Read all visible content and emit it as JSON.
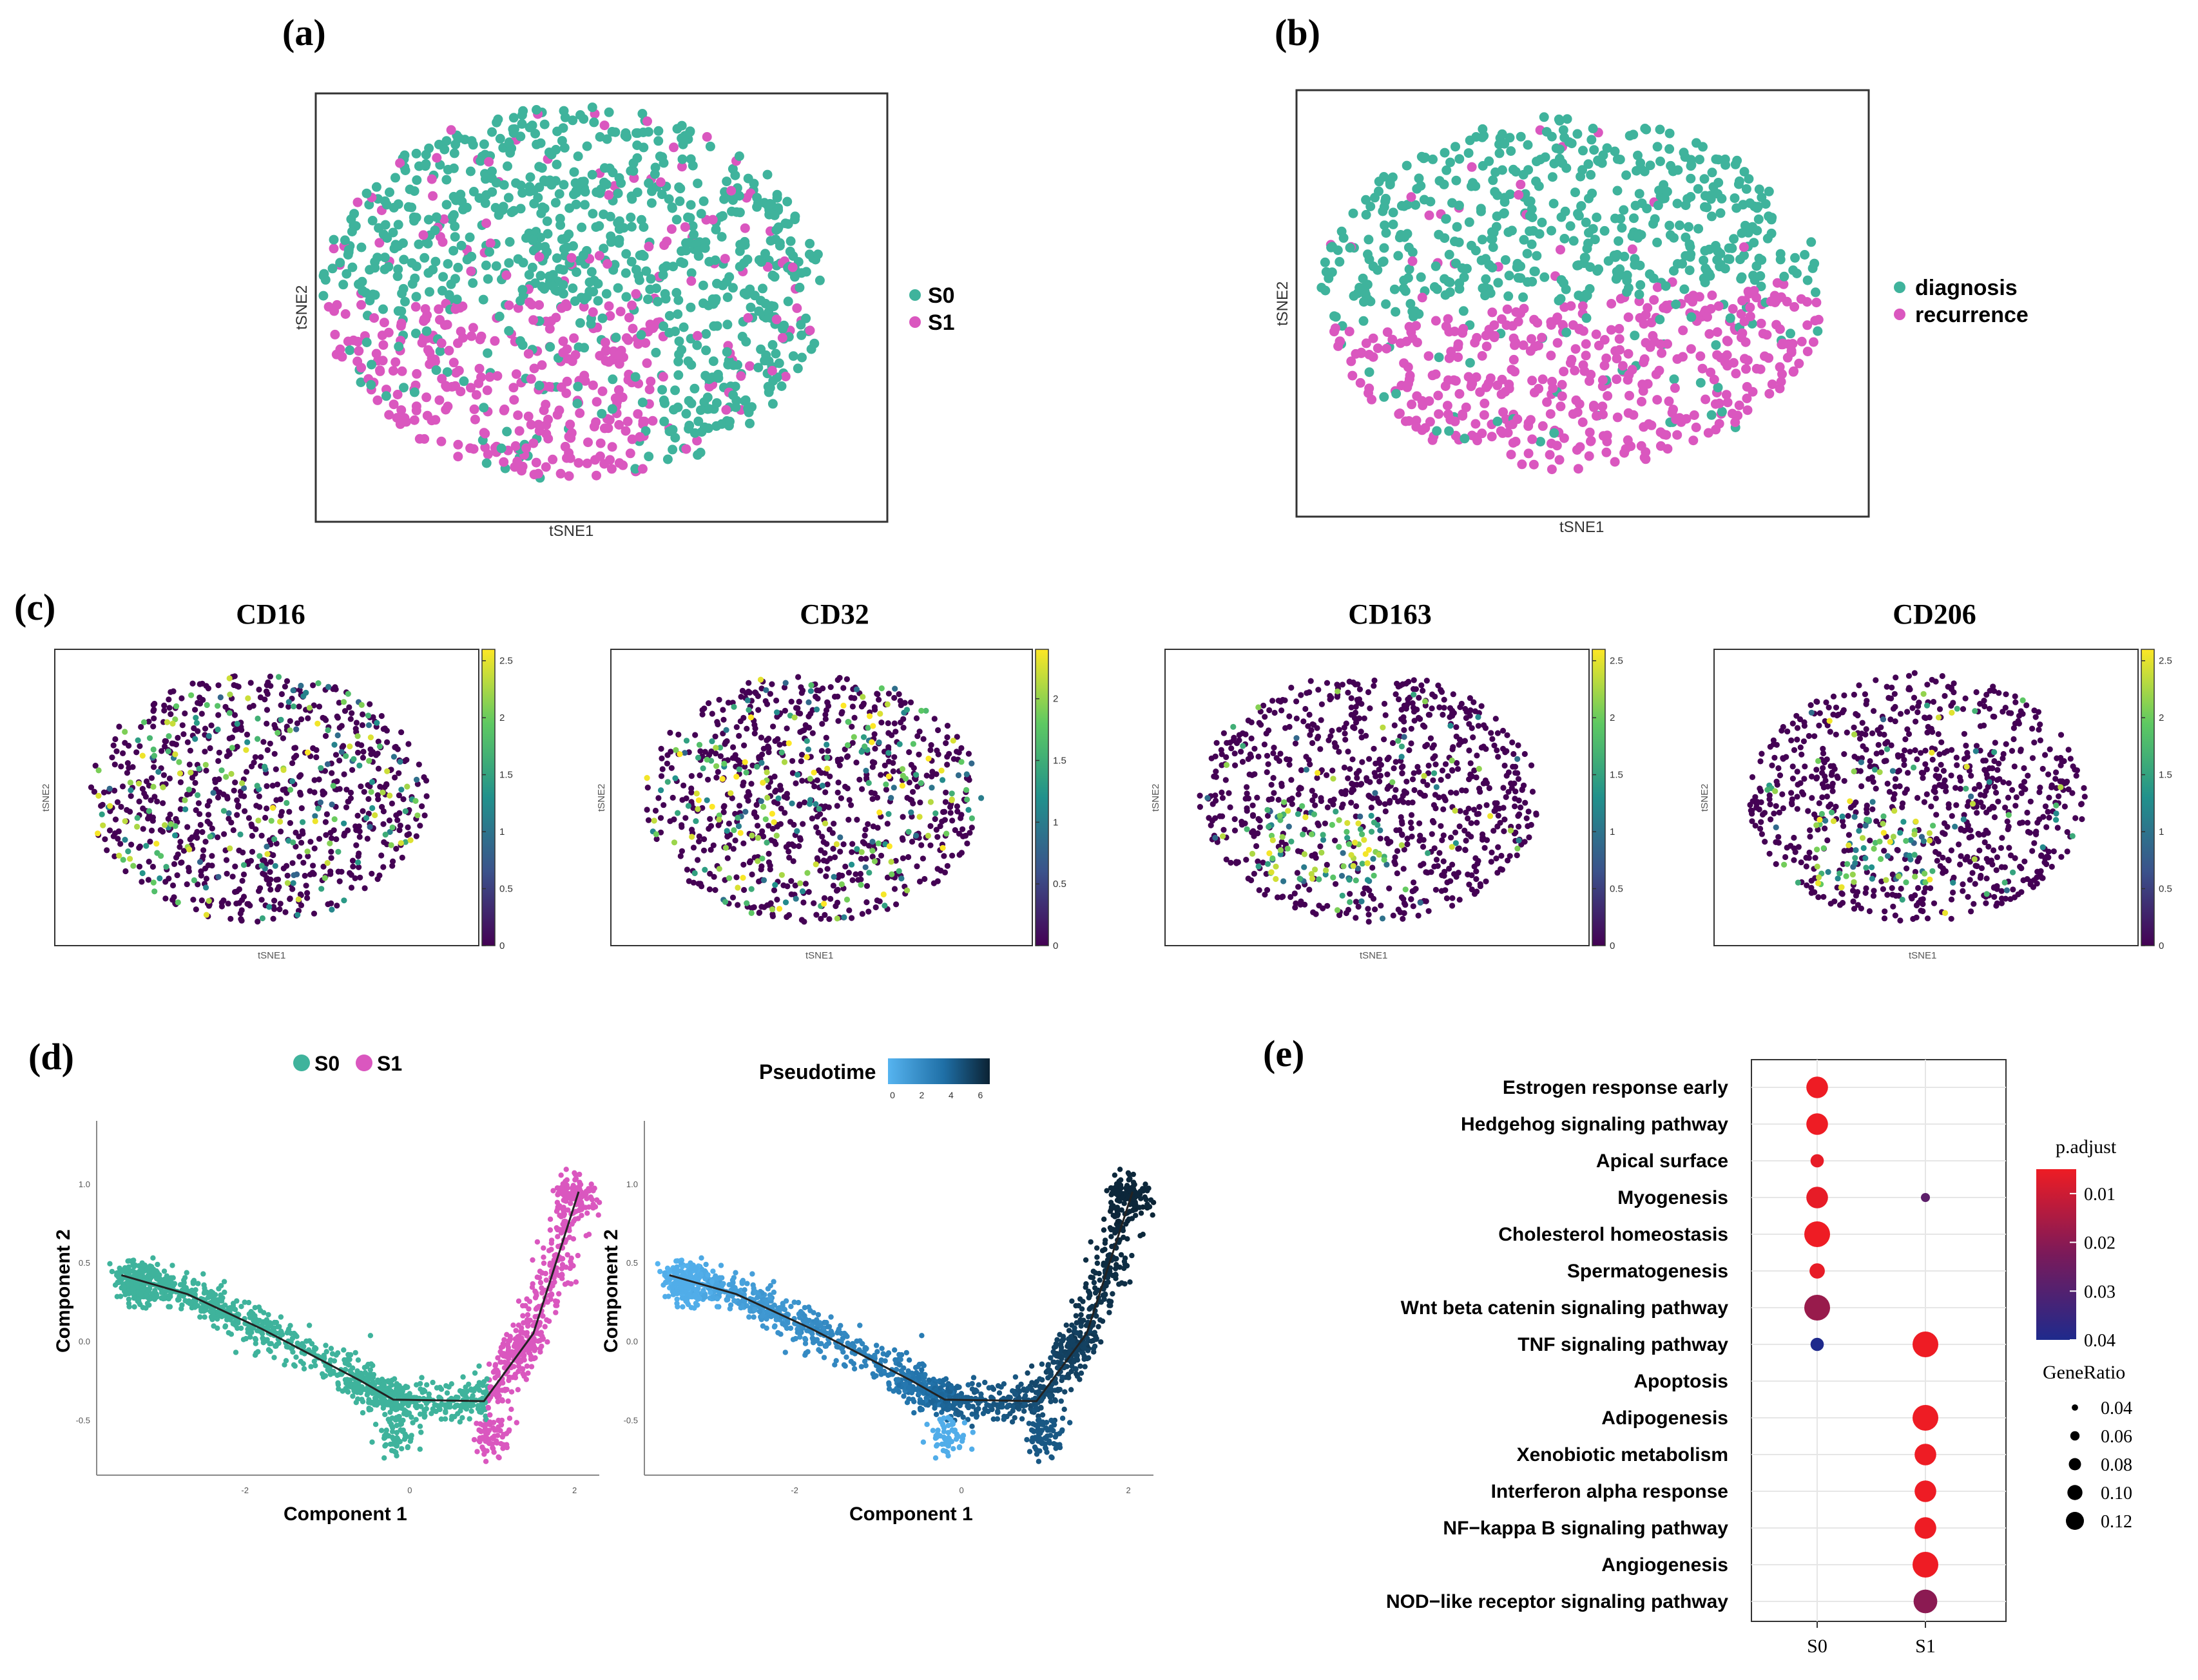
{
  "figure": {
    "panel_labels": [
      "(a)",
      "(b)",
      "(c)",
      "(d)",
      "(e)"
    ],
    "colors": {
      "teal": "#3fb39c",
      "magenta": "#da57bf",
      "frame": "#333333",
      "viridis": [
        "#440154",
        "#3b528b",
        "#21918c",
        "#5ec962",
        "#fde725"
      ],
      "pseudotime": [
        "#56b4f0",
        "#1f6fa6",
        "#0b2233"
      ],
      "padjust": [
        "#ee1c24",
        "#7a1a5a",
        "#1f2a8c"
      ]
    }
  },
  "chart_data": [
    {
      "id": "a",
      "type": "scatter",
      "xlabel": "tSNE1",
      "ylabel": "tSNE2",
      "legend": [
        {
          "label": "S0",
          "color": "#3fb39c"
        },
        {
          "label": "S1",
          "color": "#da57bf"
        }
      ],
      "note": "~1200 cells; S0 dominates upper region, S1 dominates lower-left region",
      "n_points": 1200
    },
    {
      "id": "b",
      "type": "scatter",
      "xlabel": "tSNE1",
      "ylabel": "tSNE2",
      "legend": [
        {
          "label": "diagnosis",
          "color": "#3fb39c"
        },
        {
          "label": "recurrence",
          "color": "#da57bf"
        }
      ],
      "n_points": 1000
    },
    {
      "id": "c",
      "type": "scatter",
      "xlabel": "tSNE1",
      "ylabel": "tSNE2",
      "panels": [
        {
          "title": "CD16",
          "colorbar_ticks": [
            "0",
            "0.5",
            "1",
            "1.5",
            "2",
            "2.5"
          ],
          "cmax": 2.6
        },
        {
          "title": "CD32",
          "colorbar_ticks": [
            "0",
            "0.5",
            "1",
            "1.5",
            "2"
          ],
          "cmax": 2.4
        },
        {
          "title": "CD163",
          "colorbar_ticks": [
            "0",
            "0.5",
            "1",
            "1.5",
            "2",
            "2.5"
          ],
          "cmax": 2.6
        },
        {
          "title": "CD206",
          "colorbar_ticks": [
            "0",
            "0.5",
            "1",
            "1.5",
            "2",
            "2.5"
          ],
          "cmax": 2.6
        }
      ],
      "n_points": 900
    },
    {
      "id": "d",
      "type": "scatter",
      "xlabel": "Component 1",
      "ylabel": "Component 2",
      "xlim": [
        -3.8,
        2.3
      ],
      "ylim": [
        -0.85,
        1.4
      ],
      "x_ticks": [
        "-2",
        "0",
        "2"
      ],
      "y_ticks": [
        "1.0",
        "0.5",
        "0.0",
        "-0.5"
      ],
      "legend_left": [
        {
          "label": "S0",
          "color": "#3fb39c"
        },
        {
          "label": "S1",
          "color": "#da57bf"
        }
      ],
      "colorbar_title": "Pseudotime",
      "colorbar_ticks": [
        "0",
        "2",
        "4",
        "6"
      ],
      "trajectory": [
        [
          -3.5,
          0.42
        ],
        [
          -2.7,
          0.3
        ],
        [
          -1.8,
          0.08
        ],
        [
          -0.6,
          -0.25
        ],
        [
          -0.2,
          -0.37
        ],
        [
          0.9,
          -0.38
        ],
        [
          1.5,
          0.05
        ],
        [
          2.05,
          0.95
        ]
      ]
    },
    {
      "id": "e",
      "type": "dot",
      "categories_x": [
        "S0",
        "S1"
      ],
      "pathways": [
        "Estrogen response early",
        "Hedgehog signaling pathway",
        "Apical surface",
        "Myogenesis",
        "Cholesterol homeostasis",
        "Spermatogenesis",
        "Wnt beta catenin signaling pathway",
        "TNF signaling pathway",
        "Apoptosis",
        "Adipogenesis",
        "Xenobiotic metabolism",
        "Interferon alpha response",
        "NF−kappa B signaling pathway",
        "Angiogenesis",
        "NOD−like receptor signaling pathway"
      ],
      "points": [
        {
          "pathway": "Estrogen response early",
          "cluster": "S0",
          "gene_ratio": 0.1,
          "p_adjust": 0.005
        },
        {
          "pathway": "Hedgehog signaling pathway",
          "cluster": "S0",
          "gene_ratio": 0.1,
          "p_adjust": 0.005
        },
        {
          "pathway": "Apical surface",
          "cluster": "S0",
          "gene_ratio": 0.06,
          "p_adjust": 0.006
        },
        {
          "pathway": "Myogenesis",
          "cluster": "S0",
          "gene_ratio": 0.1,
          "p_adjust": 0.006
        },
        {
          "pathway": "Myogenesis",
          "cluster": "S1",
          "gene_ratio": 0.04,
          "p_adjust": 0.028
        },
        {
          "pathway": "Cholesterol homeostasis",
          "cluster": "S0",
          "gene_ratio": 0.12,
          "p_adjust": 0.005
        },
        {
          "pathway": "Spermatogenesis",
          "cluster": "S0",
          "gene_ratio": 0.07,
          "p_adjust": 0.006
        },
        {
          "pathway": "Wnt beta catenin signaling pathway",
          "cluster": "S0",
          "gene_ratio": 0.12,
          "p_adjust": 0.018
        },
        {
          "pathway": "TNF signaling pathway",
          "cluster": "S0",
          "gene_ratio": 0.06,
          "p_adjust": 0.04
        },
        {
          "pathway": "TNF signaling pathway",
          "cluster": "S1",
          "gene_ratio": 0.12,
          "p_adjust": 0.005
        },
        {
          "pathway": "Adipogenesis",
          "cluster": "S1",
          "gene_ratio": 0.12,
          "p_adjust": 0.005
        },
        {
          "pathway": "Xenobiotic metabolism",
          "cluster": "S1",
          "gene_ratio": 0.1,
          "p_adjust": 0.005
        },
        {
          "pathway": "Interferon alpha response",
          "cluster": "S1",
          "gene_ratio": 0.1,
          "p_adjust": 0.005
        },
        {
          "pathway": "NF−kappa B signaling pathway",
          "cluster": "S1",
          "gene_ratio": 0.1,
          "p_adjust": 0.005
        },
        {
          "pathway": "Angiogenesis",
          "cluster": "S1",
          "gene_ratio": 0.12,
          "p_adjust": 0.005
        },
        {
          "pathway": "NOD−like receptor signaling pathway",
          "cluster": "S1",
          "gene_ratio": 0.11,
          "p_adjust": 0.02
        }
      ],
      "color_legend_title": "p.adjust",
      "color_legend_ticks": [
        "0.01",
        "0.02",
        "0.03",
        "0.04"
      ],
      "size_legend_title": "GeneRatio",
      "size_legend_ticks": [
        "0.04",
        "0.06",
        "0.08",
        "0.10",
        "0.12"
      ]
    }
  ]
}
